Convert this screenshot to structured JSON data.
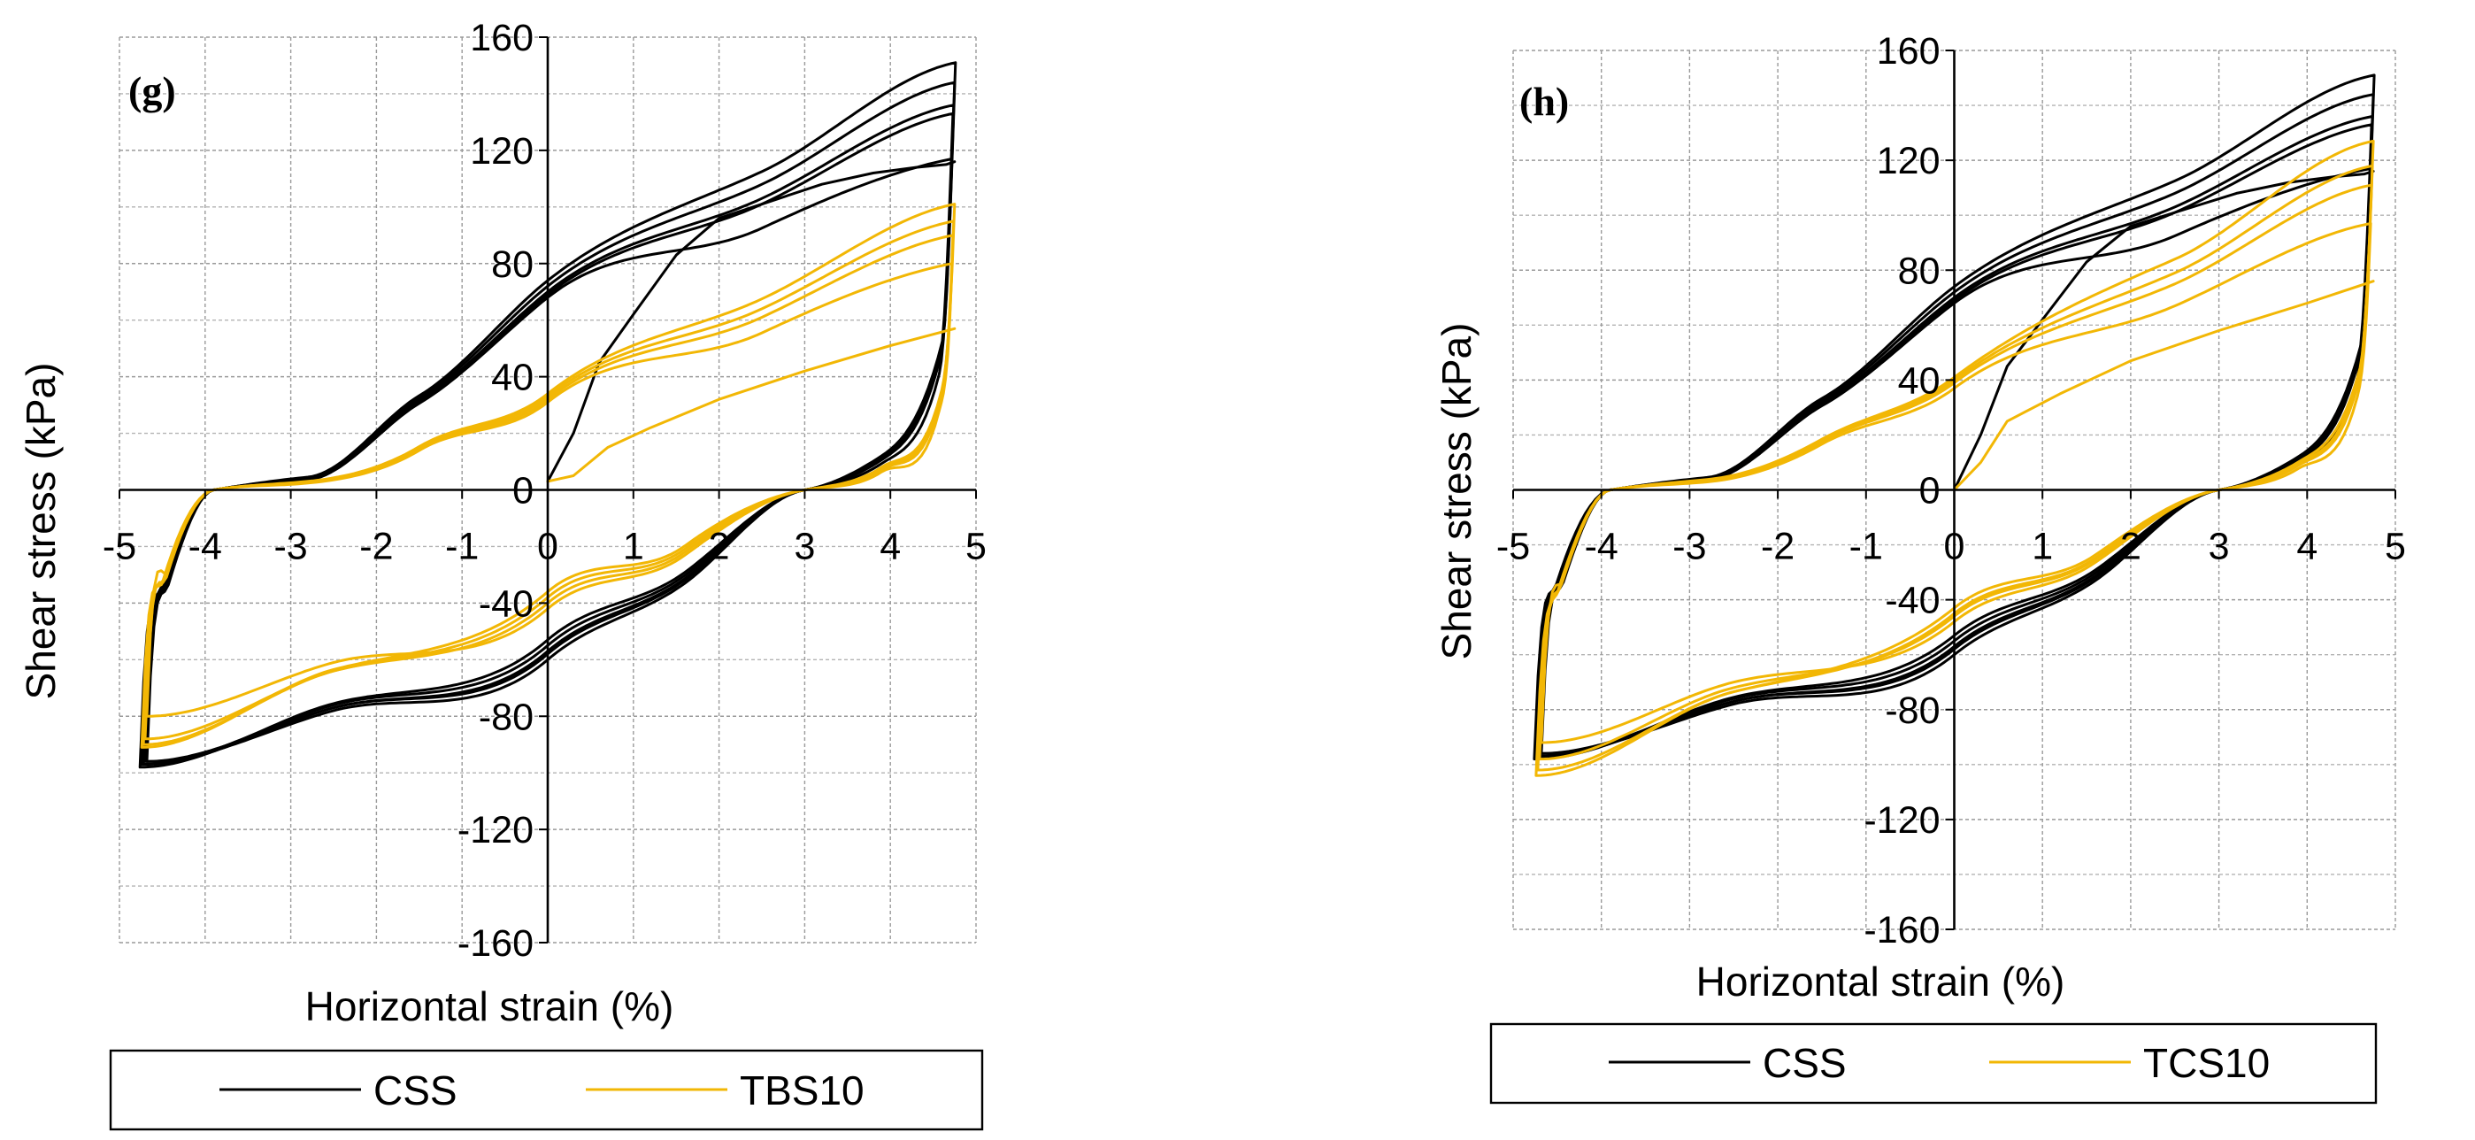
{
  "colors": {
    "css": "#000000",
    "treated": "#f2b705",
    "grid": "#9a9a9a"
  },
  "chart_data": [
    {
      "type": "line",
      "panel_label": "(g)",
      "xlabel": "Horizontal strain (%)",
      "ylabel": "Shear  stress (kPa)",
      "xlim": [
        -5,
        5
      ],
      "ylim": [
        -160,
        160
      ],
      "x_ticks": [
        "-5",
        "-4",
        "-3",
        "-2",
        "-1",
        "0",
        "1",
        "2",
        "3",
        "4",
        "5"
      ],
      "y_ticks": [
        "160",
        "120",
        "80",
        "40",
        "0",
        "-40",
        "-80",
        "-120",
        "-160"
      ],
      "legend": [
        "CSS",
        "TBS10"
      ],
      "series": [
        {
          "name": "CSS",
          "first_loading": {
            "x": [
              0,
              0.3,
              0.6,
              1.0,
              1.5,
              2.0,
              2.6,
              3.2,
              3.8,
              4.3,
              4.65,
              4.75
            ],
            "y": [
              3,
              20,
              45,
              62,
              83,
              96,
              102,
              108,
              112,
              114,
              115,
              116
            ]
          },
          "cycles": [
            {
              "peak_pos": 117,
              "peak_neg": -96,
              "mid_up": 68,
              "mid_dn": -60
            },
            {
              "peak_pos": 133,
              "peak_neg": -96,
              "mid_up": 69,
              "mid_dn": -58
            },
            {
              "peak_pos": 136,
              "peak_neg": -97,
              "mid_up": 70,
              "mid_dn": -57
            },
            {
              "peak_pos": 144,
              "peak_neg": -97,
              "mid_up": 72,
              "mid_dn": -55
            },
            {
              "peak_pos": 151,
              "peak_neg": -98,
              "mid_up": 74,
              "mid_dn": -53
            }
          ]
        },
        {
          "name": "TBS10",
          "first_loading": {
            "x": [
              0,
              0.3,
              0.7,
              1.2,
              2.0,
              3.0,
              4.0,
              4.75
            ],
            "y": [
              3,
              5,
              15,
              22,
              32,
              42,
              51,
              57
            ]
          },
          "cycles": [
            {
              "peak_pos": 80,
              "peak_neg": -80,
              "mid_up": 31,
              "mid_dn": -42
            },
            {
              "peak_pos": 90,
              "peak_neg": -88,
              "mid_up": 32,
              "mid_dn": -40
            },
            {
              "peak_pos": 95,
              "peak_neg": -90,
              "mid_up": 33,
              "mid_dn": -38
            },
            {
              "peak_pos": 101,
              "peak_neg": -91,
              "mid_up": 34,
              "mid_dn": -36
            }
          ]
        }
      ]
    },
    {
      "type": "line",
      "panel_label": "(h)",
      "xlabel": "Horizontal strain (%)",
      "ylabel": "Shear stress (kPa)",
      "xlim": [
        -5,
        5
      ],
      "ylim": [
        -160,
        160
      ],
      "x_ticks": [
        "-5",
        "-4",
        "-3",
        "-2",
        "-1",
        "0",
        "1",
        "2",
        "3",
        "4",
        "5"
      ],
      "y_ticks": [
        "160",
        "120",
        "80",
        "40",
        "0",
        "-40",
        "-80",
        "-120",
        "-160"
      ],
      "legend": [
        "CSS",
        "TCS10"
      ],
      "series": [
        {
          "name": "CSS",
          "first_loading": {
            "x": [
              0,
              0.3,
              0.6,
              1.0,
              1.5,
              2.0,
              2.6,
              3.2,
              3.8,
              4.3,
              4.65,
              4.75
            ],
            "y": [
              0,
              20,
              45,
              62,
              83,
              96,
              102,
              108,
              112,
              114,
              115,
              116
            ]
          },
          "cycles": [
            {
              "peak_pos": 117,
              "peak_neg": -96,
              "mid_up": 68,
              "mid_dn": -60
            },
            {
              "peak_pos": 133,
              "peak_neg": -96,
              "mid_up": 69,
              "mid_dn": -58
            },
            {
              "peak_pos": 136,
              "peak_neg": -97,
              "mid_up": 70,
              "mid_dn": -57
            },
            {
              "peak_pos": 144,
              "peak_neg": -97,
              "mid_up": 72,
              "mid_dn": -55
            },
            {
              "peak_pos": 151,
              "peak_neg": -98,
              "mid_up": 74,
              "mid_dn": -53
            }
          ]
        },
        {
          "name": "TCS10",
          "first_loading": {
            "x": [
              0,
              0.3,
              0.6,
              1.2,
              2.0,
              3.0,
              4.0,
              4.75
            ],
            "y": [
              0,
              10,
              25,
              35,
              47,
              58,
              68,
              76
            ]
          },
          "cycles": [
            {
              "peak_pos": 97,
              "peak_neg": -92,
              "mid_up": 37,
              "mid_dn": -48
            },
            {
              "peak_pos": 111,
              "peak_neg": -98,
              "mid_up": 39,
              "mid_dn": -46
            },
            {
              "peak_pos": 118,
              "peak_neg": -102,
              "mid_up": 40,
              "mid_dn": -45
            },
            {
              "peak_pos": 127,
              "peak_neg": -104,
              "mid_up": 41,
              "mid_dn": -43
            }
          ]
        }
      ]
    }
  ]
}
